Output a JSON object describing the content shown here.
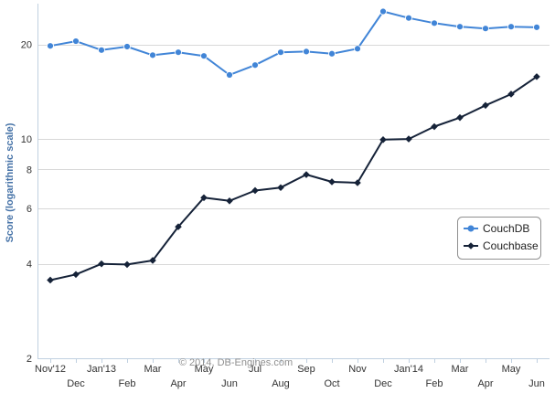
{
  "chart_data": {
    "type": "line",
    "ylabel": "Score (logarithmic scale)",
    "yscale": "log",
    "ylim": [
      2,
      27
    ],
    "yticks": [
      2,
      4,
      6,
      8,
      10,
      20
    ],
    "grid": true,
    "legend_position": "right",
    "credit": "© 2014, DB-Engines.com",
    "x": [
      "Nov'12",
      "Dec",
      "Jan'13",
      "Feb",
      "Mar",
      "Apr",
      "May",
      "Jun",
      "Jul",
      "Aug",
      "Sep",
      "Oct",
      "Nov",
      "Dec",
      "Jan'14",
      "Feb",
      "Mar",
      "Apr",
      "May",
      "Jun"
    ],
    "x_label_row": [
      0,
      1,
      0,
      1,
      0,
      1,
      0,
      1,
      0,
      1,
      0,
      1,
      0,
      1,
      0,
      1,
      0,
      1,
      0,
      1
    ],
    "series": [
      {
        "name": "CouchDB",
        "color": "#4185d7",
        "marker": "circle",
        "values": [
          19.8,
          20.5,
          19.2,
          19.7,
          18.5,
          18.9,
          18.4,
          16.0,
          17.2,
          18.9,
          19.0,
          18.7,
          19.4,
          25.5,
          24.3,
          23.4,
          22.8,
          22.5,
          22.8,
          22.7
        ]
      },
      {
        "name": "Couchbase",
        "color": "#152238",
        "marker": "diamond",
        "values": [
          3.55,
          3.7,
          4.0,
          3.98,
          4.1,
          5.25,
          6.5,
          6.35,
          6.85,
          7.0,
          7.7,
          7.3,
          7.25,
          9.95,
          10.0,
          10.95,
          11.7,
          12.8,
          13.9,
          15.8
        ]
      }
    ]
  }
}
